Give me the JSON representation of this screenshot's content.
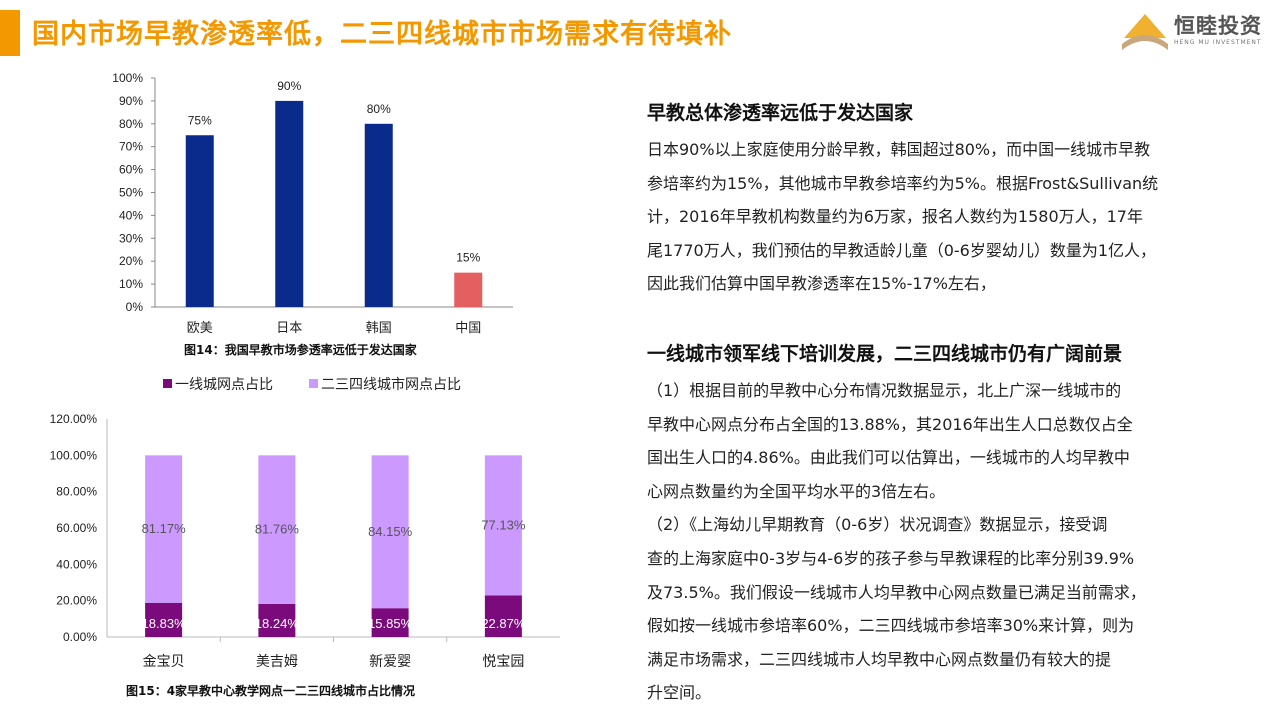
{
  "header": {
    "title": "国内市场早教渗透率低，二三四线城市市场需求有待填补",
    "logo_name": "恒睦投资",
    "logo_en": "HENG MU INVESTMENT"
  },
  "section1": {
    "heading": "早教总体渗透率远低于发达国家",
    "lines": [
      "日本90%以上家庭使用分龄早教，韩国超过80%，而中国一线城市早教",
      "参培率约为15%，其他城市早教参培率约为5%。根据Frost&Sullivan统",
      "计，2016年早教机构数量约为6万家，报名人数约为1580万人，17年",
      "尾1770万人，我们预估的早教适龄儿童（0-6岁婴幼儿）数量为1亿人，",
      "因此我们估算中国早教渗透率在15%-17%左右，"
    ]
  },
  "section2": {
    "heading": "一线城市领军线下培训发展，二三四线城市仍有广阔前景",
    "lines": [
      "（1）根据目前的早教中心分布情况数据显示，北上广深一线城市的",
      "早教中心网点分布占全国的13.88%，其2016年出生人口总数仅占全",
      "国出生人口的4.86%。由此我们可以估算出，一线城市的人均早教中",
      "心网点数量约为全国平均水平的3倍左右。",
      "（2）《上海幼儿早期教育（0-6岁）状况调查》数据显示，接受调",
      "查的上海家庭中0-3岁与4-6岁的孩子参与早教课程的比率分别39.9%",
      "及73.5%。我们假设一线城市人均早教中心网点数量已满足当前需求，",
      "假如按一线城市参培率60%，二三四线城市参培率30%来计算，则为",
      "满足市场需求，二三四线城市人均早教中心网点数量仍有较大的提",
      "升空间。"
    ]
  },
  "chart_data": [
    {
      "type": "bar",
      "title": "图14：我国早教市场参透率远低于发达国家",
      "categories": [
        "欧美",
        "日本",
        "韩国",
        "中国"
      ],
      "values": [
        75,
        90,
        80,
        15
      ],
      "value_labels": [
        "75%",
        "90%",
        "80%",
        "15%"
      ],
      "colors": [
        "#0a2b8c",
        "#0a2b8c",
        "#0a2b8c",
        "#e45f5f"
      ],
      "ylim": [
        0,
        100
      ],
      "yticks": [
        "0%",
        "10%",
        "20%",
        "30%",
        "40%",
        "50%",
        "60%",
        "70%",
        "80%",
        "90%",
        "100%"
      ],
      "xlabel": "",
      "ylabel": ""
    },
    {
      "type": "bar",
      "stacked": true,
      "title": "图15：4家早教中心教学网点一二三四线城市占比情况",
      "categories": [
        "金宝贝",
        "美吉姆",
        "新爱婴",
        "悦宝园"
      ],
      "series": [
        {
          "name": "一线城网点占比",
          "values": [
            18.83,
            18.24,
            15.85,
            22.87
          ],
          "labels": [
            "18.83%",
            "18.24%",
            "15.85%",
            "22.87%"
          ],
          "color": "#7b0a7d"
        },
        {
          "name": "二三四线城市网点占比",
          "values": [
            81.17,
            81.76,
            84.15,
            77.13
          ],
          "labels": [
            "81.17%",
            "81.76%",
            "84.15%",
            "77.13%"
          ],
          "color": "#cc99ff"
        }
      ],
      "ylim": [
        0,
        120
      ],
      "yticks": [
        "0.00%",
        "20.00%",
        "40.00%",
        "60.00%",
        "80.00%",
        "100.00%",
        "120.00%"
      ],
      "legend": "top"
    }
  ]
}
